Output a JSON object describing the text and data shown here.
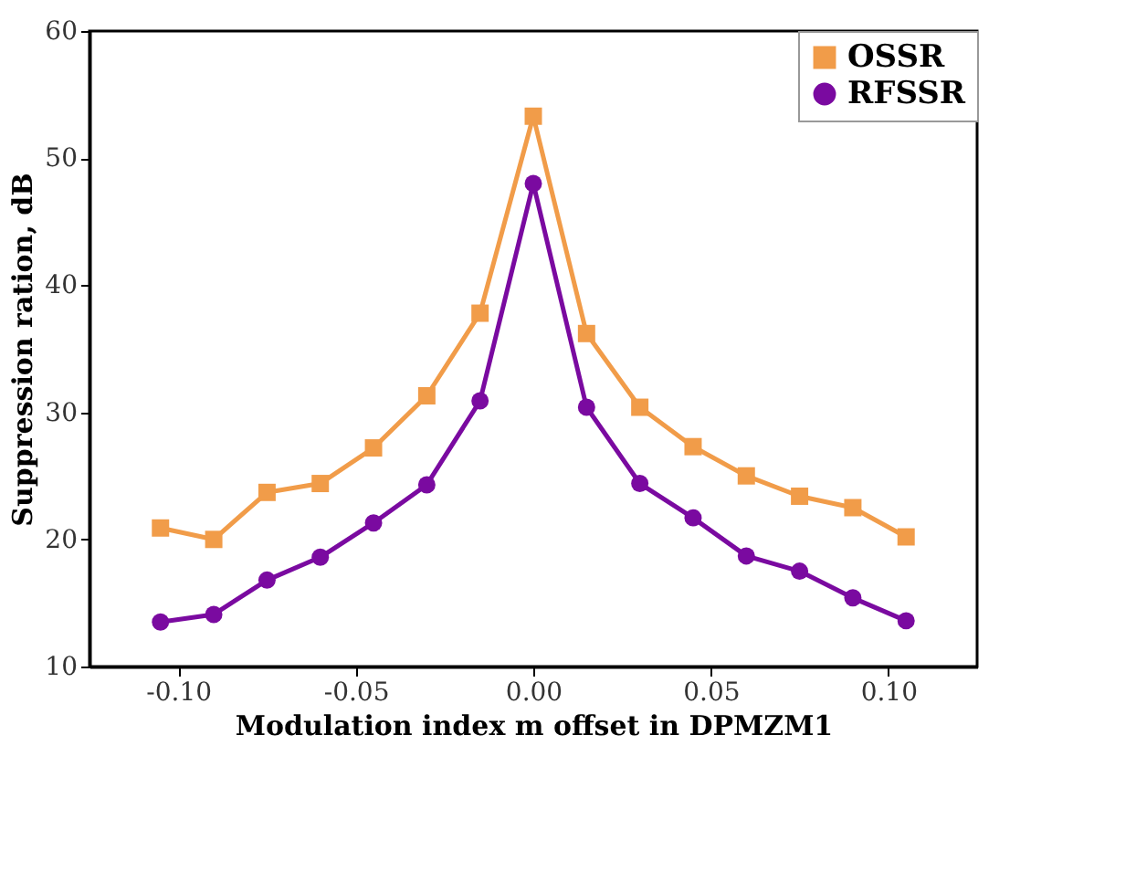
{
  "chart_data": {
    "type": "line",
    "xlabel": "Modulation index m offset in DPMZM1",
    "ylabel": "Suppression ration, dB",
    "x": [
      -0.105,
      -0.09,
      -0.075,
      -0.06,
      -0.045,
      -0.03,
      -0.015,
      0.0,
      0.015,
      0.03,
      0.045,
      0.06,
      0.075,
      0.09,
      0.105
    ],
    "series": [
      {
        "name": "OSSR",
        "color": "#f19c49",
        "marker": "square",
        "values": [
          20.9,
          20.0,
          23.7,
          24.4,
          27.2,
          31.3,
          37.8,
          53.3,
          36.2,
          30.4,
          27.3,
          25.0,
          23.4,
          22.5,
          20.2
        ]
      },
      {
        "name": "RFSSR",
        "color": "#7a0aa0",
        "marker": "circle",
        "values": [
          13.5,
          14.1,
          16.8,
          18.6,
          21.3,
          24.3,
          30.9,
          48.0,
          30.4,
          24.4,
          21.7,
          18.7,
          17.5,
          15.4,
          13.6
        ]
      }
    ],
    "xlim": [
      -0.125,
      0.125
    ],
    "xticks": [
      {
        "value": -0.1,
        "label": "-0.10"
      },
      {
        "value": -0.05,
        "label": "-0.05"
      },
      {
        "value": 0.0,
        "label": "0.00"
      },
      {
        "value": 0.05,
        "label": "0.05"
      },
      {
        "value": 0.1,
        "label": "0.10"
      }
    ],
    "ylim": [
      10,
      60
    ],
    "yticks": [
      10,
      20,
      30,
      40,
      50,
      60
    ],
    "grid": false,
    "legend": "top right",
    "line_style": "solid"
  }
}
